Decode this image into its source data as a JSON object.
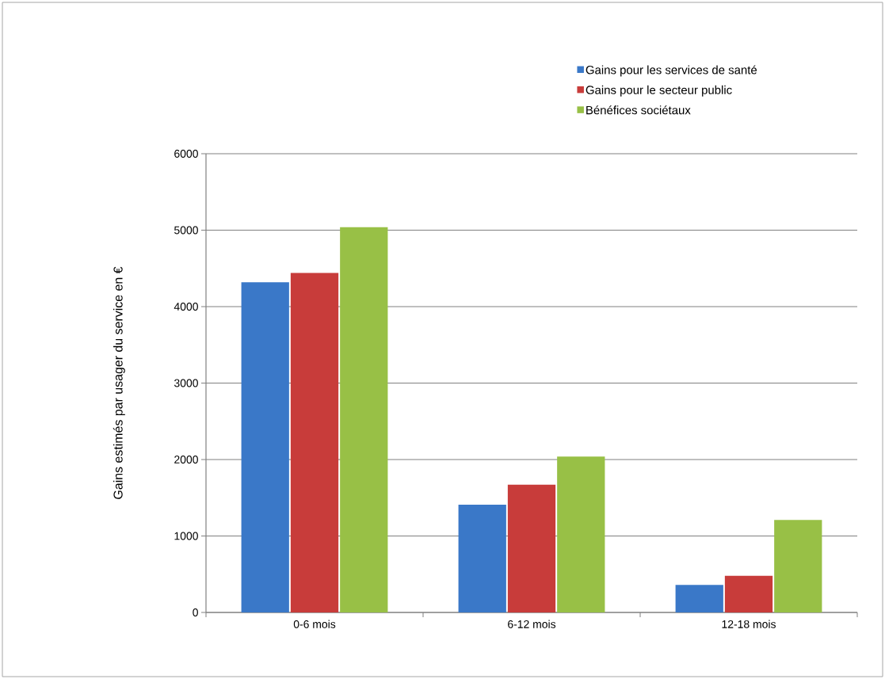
{
  "chart_data": {
    "type": "bar",
    "ylabel": "Gains estimés par usager du service en €",
    "categories": [
      "0-6 mois",
      "6-12 mois",
      "12-18 mois"
    ],
    "series": [
      {
        "name": "Gains pour les services de santé",
        "color": "#3a78c8",
        "values": [
          4320,
          1410,
          360
        ]
      },
      {
        "name": "Gains pour le secteur public",
        "color": "#c83c3a",
        "values": [
          4440,
          1670,
          480
        ]
      },
      {
        "name": "Bénéfices sociétaux",
        "color": "#98c046",
        "values": [
          5040,
          2040,
          1210
        ]
      }
    ],
    "ylim": [
      0,
      6000
    ],
    "yticks": [
      0,
      1000,
      2000,
      3000,
      4000,
      5000,
      6000
    ],
    "grid": "y",
    "legend": "top right"
  }
}
